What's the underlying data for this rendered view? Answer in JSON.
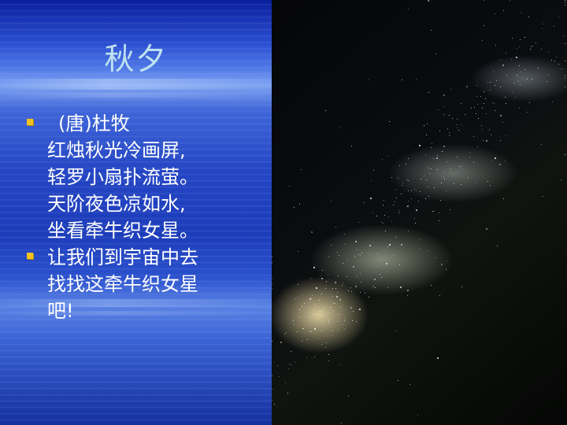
{
  "slide": {
    "title": "秋夕",
    "bullets": [
      {
        "lines": [
          "(唐)杜牧",
          "红烛秋光冷画屏,",
          "轻罗小扇扑流萤。",
          "天阶夜色凉如水,",
          "坐看牵牛织女星。"
        ]
      },
      {
        "lines": [
          "让我们到宇宙中去",
          "找找这牵牛织女星",
          "吧!"
        ]
      }
    ]
  },
  "colors": {
    "title": "#bfe3f0",
    "text": "#ffffff",
    "bullet": "#f3c21a",
    "background_left": "#2546c4",
    "background_right": "#050608"
  },
  "images": {
    "left_background": "ocean-sky-background",
    "right_photo": "milky-way-photo"
  }
}
